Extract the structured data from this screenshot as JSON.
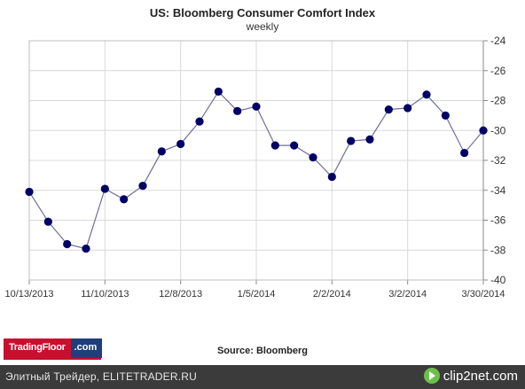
{
  "chart_data": {
    "type": "line",
    "title": "US:  Bloomberg Consumer Comfort Index",
    "subtitle": "weekly",
    "source": "Source:  Bloomberg",
    "ylim": [
      -40,
      -24
    ],
    "y_ticks": [
      "-24",
      "-26",
      "-28",
      "-30",
      "-32",
      "-34",
      "-36",
      "-38",
      "-40"
    ],
    "y_tick_values": [
      -24,
      -26,
      -28,
      -30,
      -32,
      -34,
      -36,
      -38,
      -40
    ],
    "y_axis_position": "right",
    "grid": true,
    "x_tick_labels": [
      "10/13/2013",
      "11/10/2013",
      "12/8/2013",
      "1/5/2014",
      "2/2/2014",
      "3/2/2014",
      "3/30/2014"
    ],
    "x_tick_indices": [
      0,
      4,
      8,
      12,
      16,
      20,
      24
    ],
    "x": [
      "10/13/2013",
      "10/20/2013",
      "10/27/2013",
      "11/3/2013",
      "11/10/2013",
      "11/17/2013",
      "11/24/2013",
      "12/1/2013",
      "12/8/2013",
      "12/15/2013",
      "12/22/2013",
      "12/29/2013",
      "1/5/2014",
      "1/12/2014",
      "1/19/2014",
      "1/26/2014",
      "2/2/2014",
      "2/9/2014",
      "2/16/2014",
      "2/23/2014",
      "3/2/2014",
      "3/9/2014",
      "3/16/2014",
      "3/23/2014",
      "3/30/2014"
    ],
    "series": [
      {
        "values": [
          -34.1,
          -36.1,
          -37.6,
          -37.9,
          -33.9,
          -34.6,
          -33.7,
          -31.4,
          -30.9,
          -29.4,
          -27.4,
          -28.7,
          -28.4,
          -31.0,
          -31.0,
          -31.8,
          -33.1,
          -30.7,
          -30.6,
          -28.6,
          -28.5,
          -27.6,
          -29.0,
          -31.5,
          -30.0
        ],
        "color": "#000066",
        "line_color": "#6f6f96"
      }
    ]
  },
  "branding": {
    "logo_left": "TradingFloor",
    "logo_right": ".com",
    "watermark_left": "Элитный Трейдер, ELITETRADER.RU",
    "watermark_right": "clip2net.com"
  }
}
